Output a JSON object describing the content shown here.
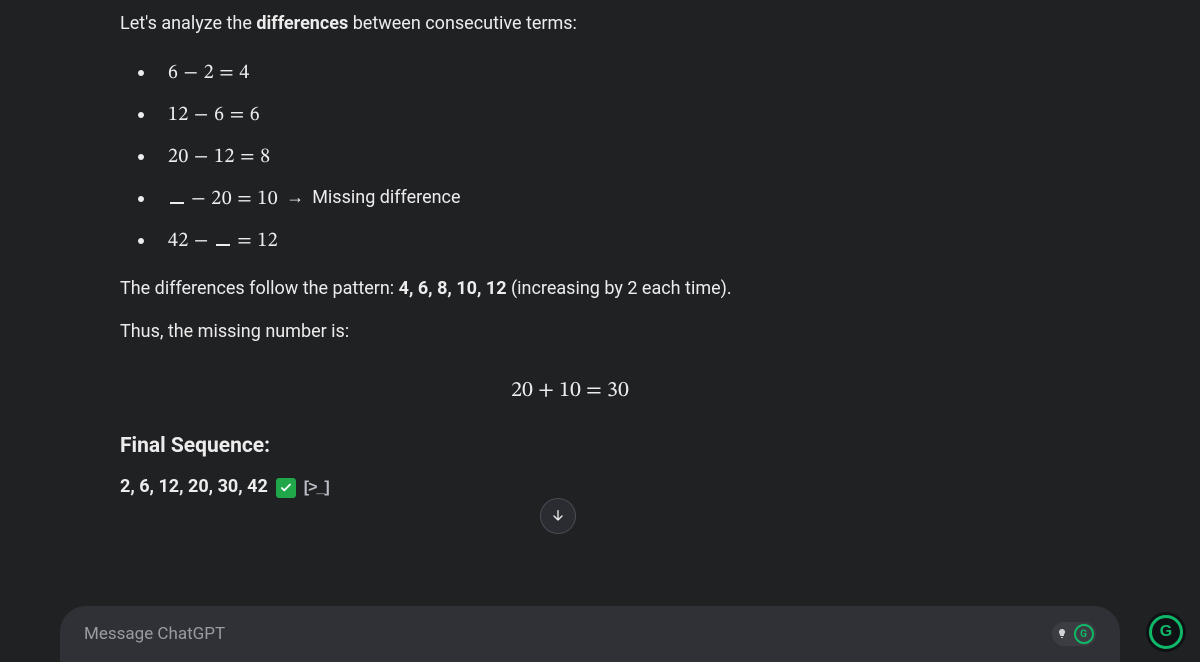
{
  "colors": {
    "background": "#202123",
    "text": "#ececec",
    "muted": "#9a9aa3",
    "inputBg": "#303136",
    "checkBg": "#1fa74a",
    "accentGreen": "#0fb869",
    "scrollBorder": "#4a4b52"
  },
  "intro": {
    "prefix": "Let's analyze the ",
    "bold": "differences",
    "suffix": " between consecutive terms:"
  },
  "diffs": [
    {
      "lhs_a": "6",
      "lhs_b": "2",
      "rhs": "4",
      "blankA": false,
      "blankB": false,
      "note": ""
    },
    {
      "lhs_a": "12",
      "lhs_b": "6",
      "rhs": "6",
      "blankA": false,
      "blankB": false,
      "note": ""
    },
    {
      "lhs_a": "20",
      "lhs_b": "12",
      "rhs": "8",
      "blankA": false,
      "blankB": false,
      "note": ""
    },
    {
      "lhs_a": "_",
      "lhs_b": "20",
      "rhs": "10",
      "blankA": true,
      "blankB": false,
      "note": "Missing difference"
    },
    {
      "lhs_a": "42",
      "lhs_b": "_",
      "rhs": "12",
      "blankA": false,
      "blankB": true,
      "note": ""
    }
  ],
  "pattern": {
    "prefix": "The differences follow the pattern: ",
    "bold": "4, 6, 8, 10, 12",
    "suffix": " (increasing by 2 each time)."
  },
  "thus": "Thus, the missing number is:",
  "equation": "20 + 10 = 30",
  "final": {
    "heading": "Final Sequence:",
    "sequence": "2, 6, 12, 20, 30, 42"
  },
  "input": {
    "placeholder": "Message ChatGPT"
  },
  "badge": {
    "letter": "G"
  }
}
